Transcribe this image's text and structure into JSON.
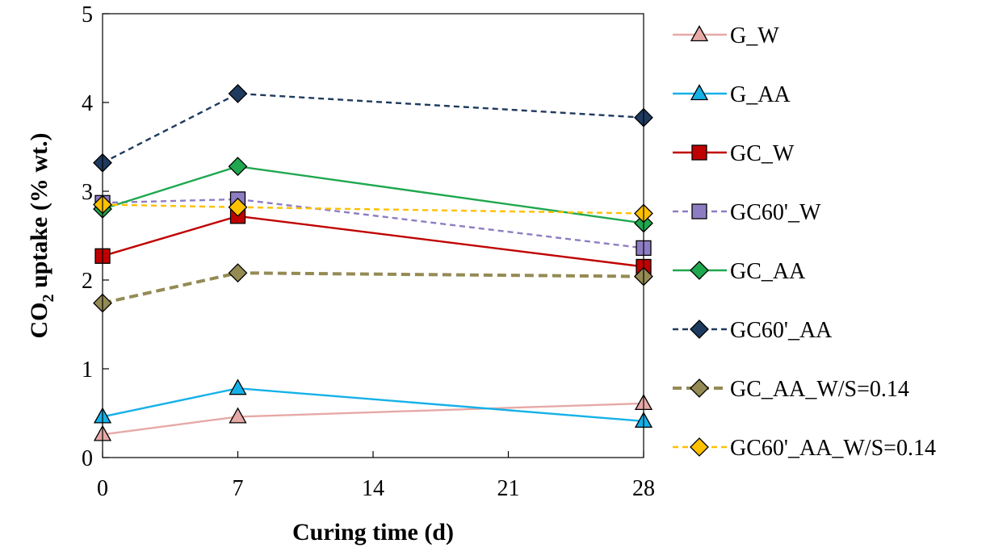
{
  "chart_data": {
    "type": "line",
    "xlabel": "Curing time (d)",
    "ylabel": {
      "prefix": "CO",
      "subscript": "2",
      "suffix": " uptake (% wt.)"
    },
    "xlim": [
      0,
      28
    ],
    "ylim": [
      0,
      5
    ],
    "x_ticks": [
      0,
      7,
      14,
      21,
      28
    ],
    "y_ticks": [
      0,
      1,
      2,
      3,
      4,
      5
    ],
    "grid": false,
    "legend_position": "right",
    "series": [
      {
        "name": "G_W",
        "x": [
          0,
          7,
          28
        ],
        "values": [
          0.26,
          0.46,
          0.61
        ],
        "color": "#e6a9a6",
        "marker_fill": "#e6a9a6",
        "marker": "triangle",
        "dash": "solid",
        "width": "normal"
      },
      {
        "name": "G_AA",
        "x": [
          0,
          7,
          28
        ],
        "values": [
          0.46,
          0.78,
          0.41
        ],
        "color": "#15b1e8",
        "marker_fill": "#15b1e8",
        "marker": "triangle",
        "dash": "solid",
        "width": "normal"
      },
      {
        "name": "GC_W",
        "x": [
          0,
          7,
          28
        ],
        "values": [
          2.27,
          2.72,
          2.15
        ],
        "color": "#c00000",
        "marker_fill": "#c00000",
        "marker": "square",
        "dash": "solid",
        "width": "normal"
      },
      {
        "name": "GC60'_W",
        "x": [
          0,
          7,
          28
        ],
        "values": [
          2.87,
          2.91,
          2.36
        ],
        "color": "#8e7cc3",
        "marker_fill": "#8e7cc3",
        "marker": "square",
        "dash": "dashed",
        "width": "normal"
      },
      {
        "name": "GC_AA",
        "x": [
          0,
          7,
          28
        ],
        "values": [
          2.8,
          3.28,
          2.64
        ],
        "color": "#1fa84f",
        "marker_fill": "#1fa84f",
        "marker": "diamond",
        "dash": "solid",
        "width": "normal"
      },
      {
        "name": "GC60'_AA",
        "x": [
          0,
          7,
          28
        ],
        "values": [
          3.32,
          4.1,
          3.83
        ],
        "color": "#1f3a5f",
        "marker_fill": "#1f3a5f",
        "marker": "diamond",
        "dash": "dashed",
        "width": "normal"
      },
      {
        "name": "GC_AA_W/S=0.14",
        "x": [
          0,
          7,
          28
        ],
        "values": [
          1.74,
          2.08,
          2.04
        ],
        "color": "#948a54",
        "marker_fill": "#948a54",
        "marker": "diamond",
        "dash": "dashed",
        "width": "thick"
      },
      {
        "name": "GC60'_AA_W/S=0.14",
        "x": [
          0,
          7,
          28
        ],
        "values": [
          2.85,
          2.82,
          2.75
        ],
        "color": "#ffc000",
        "marker_fill": "#ffc000",
        "marker": "diamond",
        "dash": "dashed",
        "width": "normal"
      }
    ]
  }
}
